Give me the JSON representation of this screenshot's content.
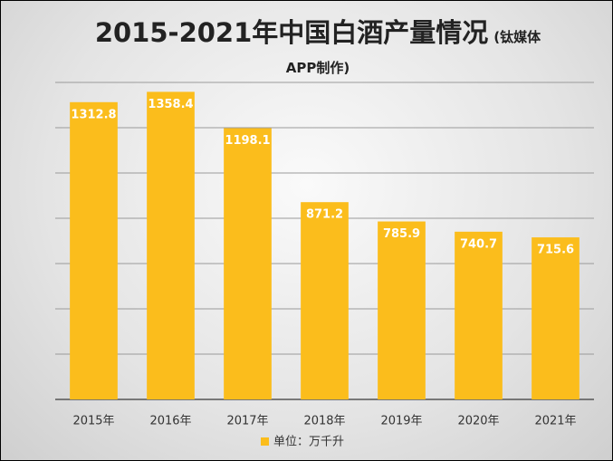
{
  "chart_data": {
    "type": "bar",
    "title": "2015-2021年中国白酒产量情况",
    "subtitle": "(钛媒体APP制作)",
    "categories": [
      "2015年",
      "2016年",
      "2017年",
      "2018年",
      "2019年",
      "2020年",
      "2021年"
    ],
    "series": [
      {
        "name": "单位：万千升",
        "color": "#fbbd1c",
        "values": [
          1312.8,
          1358.4,
          1198.1,
          871.2,
          785.9,
          740.7,
          715.6
        ]
      }
    ],
    "ylim": [
      0,
      1400
    ],
    "yticks": [
      0,
      200,
      400,
      600,
      800,
      1000,
      1200,
      1400
    ],
    "grid": true
  }
}
